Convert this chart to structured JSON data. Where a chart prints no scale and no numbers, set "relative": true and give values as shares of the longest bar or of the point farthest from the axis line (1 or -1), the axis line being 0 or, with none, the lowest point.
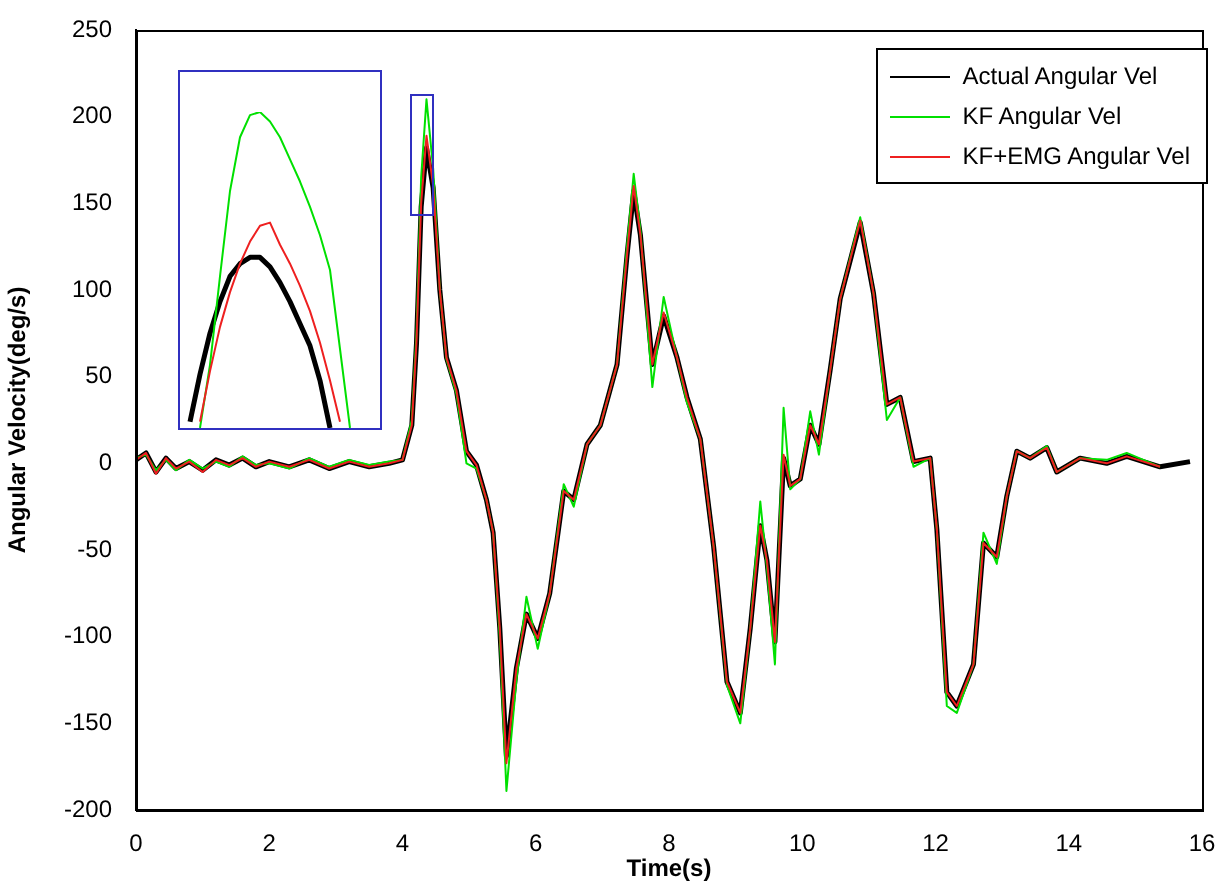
{
  "chart_data": [
    {
      "type": "line",
      "xlabel": "Time(s)",
      "ylabel": "Angular Velocity(deg/s)",
      "legend": "top right",
      "xlim": [
        0,
        16
      ],
      "ylim": [
        -200,
        250
      ],
      "xticks": [
        0,
        2,
        4,
        6,
        8,
        10,
        12,
        14,
        16
      ],
      "yticks": [
        -200,
        -150,
        -100,
        -50,
        0,
        50,
        100,
        150,
        200,
        250
      ],
      "x": [
        0,
        0.15,
        0.3,
        0.45,
        0.6,
        0.8,
        1.0,
        1.2,
        1.4,
        1.6,
        1.8,
        2.0,
        2.3,
        2.6,
        2.9,
        3.2,
        3.5,
        3.8,
        4.0,
        4.14,
        4.21,
        4.28,
        4.36,
        4.46,
        4.56,
        4.66,
        4.81,
        4.96,
        5.11,
        5.26,
        5.36,
        5.46,
        5.56,
        5.71,
        5.86,
        6.03,
        6.21,
        6.42,
        6.57,
        6.77,
        6.97,
        7.22,
        7.37,
        7.47,
        7.57,
        7.75,
        7.92,
        8.12,
        8.27,
        8.47,
        8.67,
        8.87,
        9.07,
        9.22,
        9.37,
        9.47,
        9.59,
        9.72,
        9.82,
        9.97,
        10.12,
        10.25,
        10.42,
        10.57,
        10.87,
        11.07,
        11.27,
        11.47,
        11.67,
        11.92,
        12.02,
        12.17,
        12.32,
        12.57,
        12.72,
        12.92,
        13.07,
        13.22,
        13.42,
        13.67,
        13.82,
        14.17,
        14.57,
        14.87,
        15.37,
        15.82
      ],
      "series": [
        {
          "name": "Actual Angular Vel",
          "color": "#000000",
          "values": [
            2,
            6,
            -5,
            3,
            -3,
            1,
            -4,
            2,
            -1,
            3,
            -2,
            1,
            -2,
            2,
            -3,
            1,
            -2,
            0,
            2,
            22,
            69,
            148,
            182,
            159,
            100,
            61,
            42,
            7,
            -1,
            -21,
            -40,
            -95,
            -169,
            -118,
            -87,
            -101,
            -75,
            -16,
            -21,
            11,
            22,
            57,
            120,
            157,
            132,
            57,
            85,
            61,
            38,
            14,
            -48,
            -126,
            -144,
            -95,
            -36,
            -56,
            -103,
            3,
            -13,
            -9,
            22,
            11,
            54,
            95,
            139,
            98,
            34,
            38,
            1,
            3,
            -38,
            -132,
            -140,
            -116,
            -46,
            -54,
            -19,
            7,
            3,
            9,
            -5,
            3,
            0,
            4,
            -2,
            1
          ]
        },
        {
          "name": "KF Angular Vel",
          "color": "#00e000",
          "values": [
            3,
            5,
            -4,
            2,
            -4,
            2,
            -3,
            1,
            -2,
            4,
            -1,
            0,
            -3,
            3,
            -2,
            2,
            -1,
            1,
            2,
            25,
            75,
            165,
            210,
            170,
            100,
            60,
            40,
            0,
            -3,
            -21,
            -40,
            -100,
            -189,
            -125,
            -77,
            -107,
            -75,
            -12,
            -25,
            11,
            22,
            57,
            125,
            167,
            135,
            44,
            96,
            61,
            35,
            14,
            -48,
            -128,
            -150,
            -95,
            -22,
            -60,
            -116,
            32,
            -15,
            -9,
            30,
            5,
            54,
            95,
            142,
            98,
            25,
            38,
            -2,
            3,
            -38,
            -140,
            -144,
            -116,
            -40,
            -58,
            -19,
            7,
            3,
            10,
            -5,
            3,
            2,
            6,
            -2,
            null
          ]
        },
        {
          "name": "KF+EMG Angular Vel",
          "color": "#ee2020",
          "values": [
            2,
            6,
            -6,
            3,
            -3,
            1,
            -5,
            2,
            -1,
            3,
            -2,
            1,
            -2,
            2,
            -3,
            1,
            -2,
            0,
            2,
            22,
            70,
            150,
            189,
            160,
            100,
            61,
            42,
            7,
            -1,
            -21,
            -40,
            -95,
            -173,
            -118,
            -87,
            -101,
            -75,
            -16,
            -21,
            11,
            22,
            57,
            120,
            160,
            132,
            57,
            87,
            61,
            38,
            14,
            -48,
            -126,
            -144,
            -95,
            -36,
            -56,
            -103,
            5,
            -13,
            -9,
            22,
            11,
            54,
            95,
            140,
            98,
            34,
            38,
            1,
            3,
            -38,
            -132,
            -140,
            -116,
            -46,
            -54,
            -19,
            7,
            3,
            9,
            -5,
            3,
            0,
            4,
            -2,
            null
          ]
        }
      ]
    },
    {
      "type": "line",
      "relative": true,
      "categories": [
        null,
        null,
        null,
        null,
        null,
        null,
        null,
        null,
        null,
        null,
        null,
        null,
        null,
        null,
        null,
        null,
        null,
        null,
        null,
        null,
        null
      ],
      "series": [
        {
          "color": "#000000",
          "values": [
            null,
            0.02,
            0.17,
            0.3,
            0.4,
            0.48,
            0.52,
            0.54,
            0.54,
            0.51,
            0.46,
            0.4,
            0.33,
            0.26,
            0.15,
            0,
            null,
            null,
            null,
            null,
            null
          ]
        },
        {
          "color": "#00e000",
          "values": [
            null,
            null,
            0,
            0.2,
            0.48,
            0.75,
            0.92,
            0.99,
            1.0,
            0.97,
            0.92,
            0.85,
            0.78,
            0.7,
            0.61,
            0.5,
            0.25,
            0,
            null,
            null,
            null
          ]
        },
        {
          "color": "#ee2020",
          "values": [
            null,
            null,
            0.02,
            0.18,
            0.32,
            0.43,
            0.52,
            0.59,
            0.64,
            0.65,
            0.58,
            0.52,
            0.45,
            0.37,
            0.27,
            0.15,
            0.02,
            null,
            null,
            null,
            null
          ]
        }
      ]
    }
  ]
}
